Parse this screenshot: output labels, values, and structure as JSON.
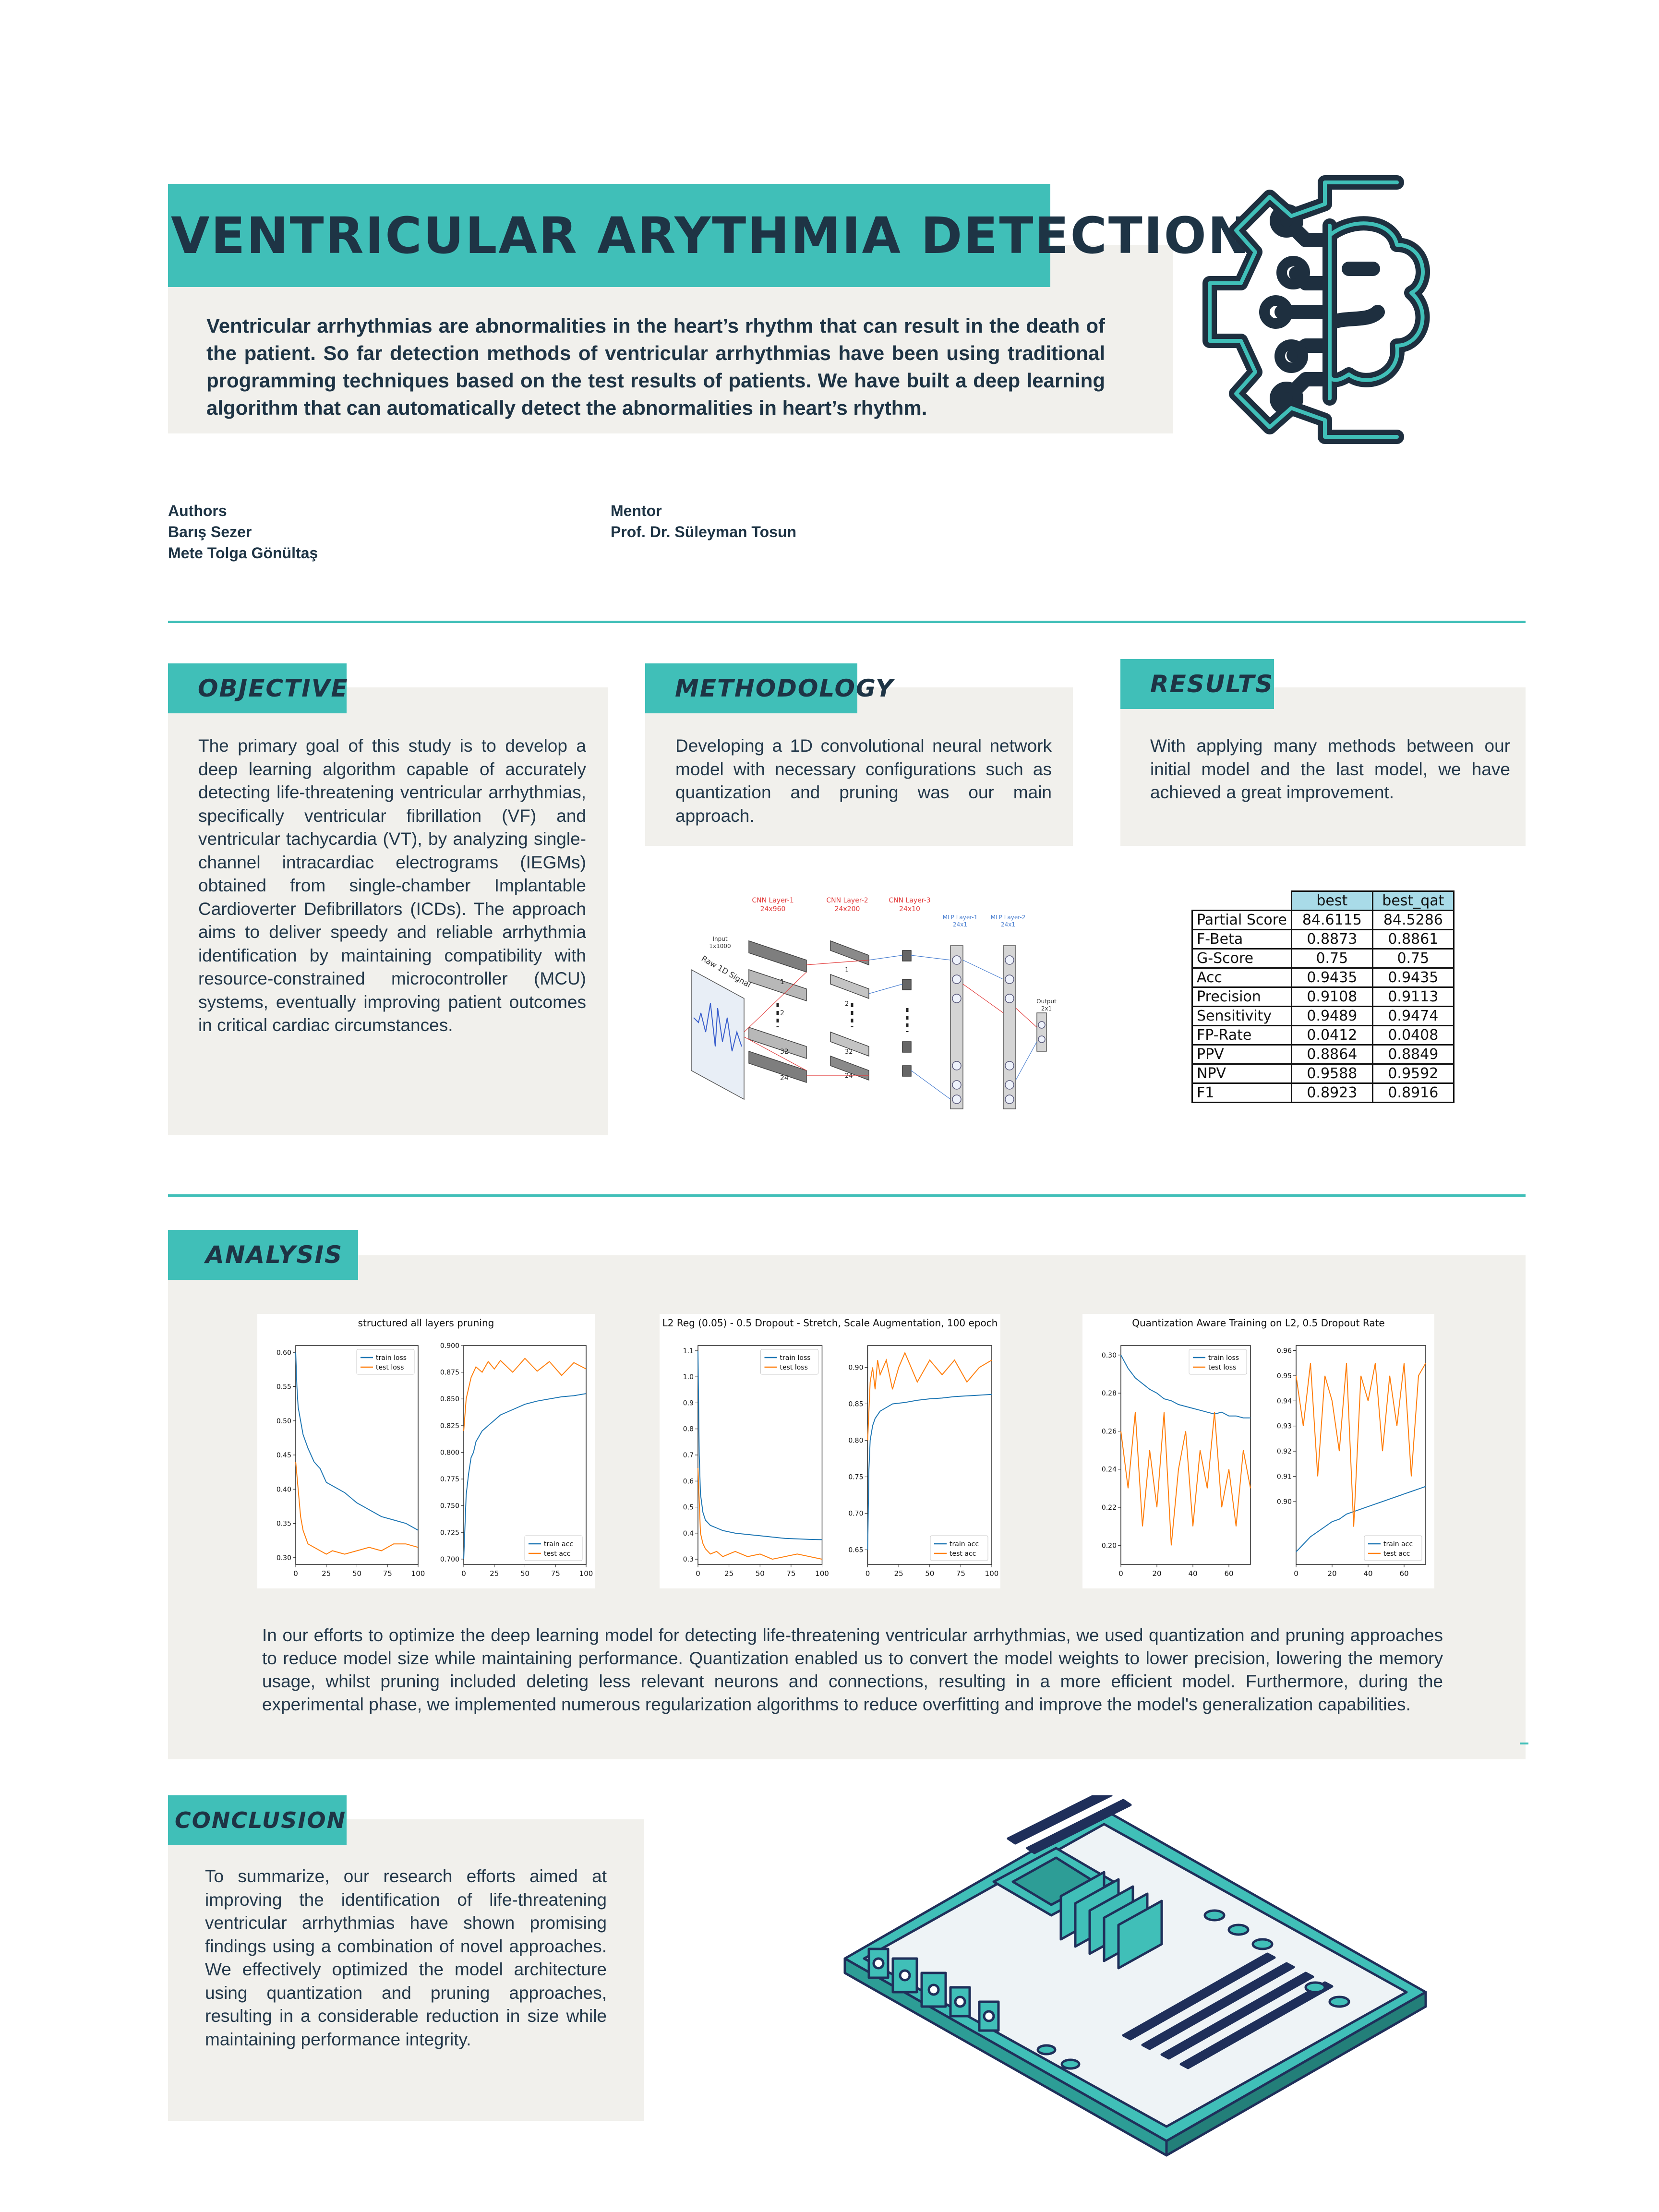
{
  "header": {
    "title": "VENTRICULAR ARYTHMIA DETECTION",
    "intro": "Ventricular arrhythmias are abnormalities in the heart’s rhythm that can result in the death of the patient. So far detection methods of ventricular arrhythmias have been using traditional programming techniques based on the test results of patients. We have built a deep learning algorithm that can automatically detect the abnormalities in heart’s rhythm."
  },
  "people": {
    "authors_label": "Authors",
    "authors": [
      "Barış Sezer",
      "Mete Tolga Gönültaş"
    ],
    "mentor_label": "Mentor",
    "mentor": "Prof. Dr. Süleyman Tosun"
  },
  "objective": {
    "heading": "OBJECTIVE",
    "text": "The primary goal of this study is to develop a deep learning algorithm capable of accurately detecting life-threatening ventricular arrhythmias, specifically ventricular fibrillation (VF) and ventricular tachycardia (VT), by analyzing single-channel intracardiac electrograms (IEGMs) obtained from single-chamber Implantable Cardioverter Defibrillators (ICDs). The approach aims to deliver speedy and reliable arrhythmia identification by maintaining compatibility with resource-constrained microcontroller (MCU) systems, eventually improving patient outcomes in critical cardiac circumstances."
  },
  "methodology": {
    "heading": "METHODOLOGY",
    "text": "Developing a 1D convolutional neural network model with necessary configurations such as quantization and pruning was our main approach.",
    "diagram": {
      "cnn1": "CNN Layer-1",
      "cnn1_dim": "24x960",
      "cnn2": "CNN Layer-2",
      "cnn2_dim": "24x200",
      "cnn3": "CNN Layer-3",
      "cnn3_dim": "24x10",
      "mlp1": "MLP Layer-1",
      "mlp1_dim": "24x1",
      "mlp2": "MLP Layer-2",
      "mlp2_dim": "24x1",
      "input": "Input",
      "input_dim": "1x1000",
      "raw": "Raw 1D Signal",
      "output": "Output",
      "output_dim": "2x1",
      "m1": "1",
      "m2": "2",
      "m32a": "32",
      "m24a": "24",
      "n1": "1",
      "n2": "2",
      "n32": "32",
      "n24": "24"
    }
  },
  "results": {
    "heading": "RESULTS",
    "text": "With applying many methods between our initial model and the last model, we have achieved a great improvement.",
    "columns": [
      "best",
      "best_qat"
    ],
    "rows": [
      {
        "label": "Partial Score",
        "best": "84.6115",
        "best_qat": "84.5286"
      },
      {
        "label": "F-Beta",
        "best": "0.8873",
        "best_qat": "0.8861"
      },
      {
        "label": "G-Score",
        "best": "0.75",
        "best_qat": "0.75"
      },
      {
        "label": "Acc",
        "best": "0.9435",
        "best_qat": "0.9435"
      },
      {
        "label": "Precision",
        "best": "0.9108",
        "best_qat": "0.9113"
      },
      {
        "label": "Sensitivity",
        "best": "0.9489",
        "best_qat": "0.9474"
      },
      {
        "label": "FP-Rate",
        "best": "0.0412",
        "best_qat": "0.0408"
      },
      {
        "label": "PPV",
        "best": "0.8864",
        "best_qat": "0.8849"
      },
      {
        "label": "NPV",
        "best": "0.9588",
        "best_qat": "0.9592"
      },
      {
        "label": "F1",
        "best": "0.8923",
        "best_qat": "0.8916"
      }
    ]
  },
  "analysis": {
    "heading": "ANALYSIS",
    "text": "In our efforts to optimize the deep learning model for detecting life-threatening ventricular arrhythmias, we used quantization and pruning approaches to reduce model size while maintaining performance. Quantization enabled us to convert the model weights to lower precision, lowering the memory usage, whilst pruning included deleting less relevant neurons and connections, resulting in a more efficient model. Furthermore, during the experimental phase, we implemented numerous regularization algorithms to reduce overfitting and improve the model's generalization capabilities."
  },
  "conclusion": {
    "heading": "CONCLUSION",
    "text": "To summarize, our research efforts aimed at improving the identification of life-threatening ventricular arrhythmias have shown promising findings using a combination of novel approaches. We effectively optimized the model architecture using quantization and pruning approaches, resulting in a considerable reduction in size while maintaining performance integrity."
  },
  "colors": {
    "teal": "#40bfb8",
    "panel": "#f1f0ec",
    "navy": "#1e3445",
    "train": "#1f77b4",
    "test": "#ff7f0e"
  },
  "icons": [
    "brain-gear-icon",
    "motherboard-illustration"
  ],
  "chart_data": [
    {
      "type": "line",
      "title": "structured all layers pruning",
      "panels": [
        {
          "xlim": [
            0,
            100
          ],
          "ylim": [
            0.29,
            0.61
          ],
          "xticks": [
            "0",
            "25",
            "50",
            "75",
            "100"
          ],
          "yticks": [
            "0.30",
            "0.35",
            "0.40",
            "0.45",
            "0.50",
            "0.55",
            "0.60"
          ],
          "legend": "top-right",
          "series": [
            {
              "name": "train loss",
              "x": [
                0,
                1,
                2,
                4,
                6,
                10,
                15,
                20,
                25,
                30,
                40,
                50,
                60,
                70,
                80,
                90,
                100
              ],
              "y": [
                0.6,
                0.55,
                0.52,
                0.5,
                0.48,
                0.46,
                0.44,
                0.43,
                0.41,
                0.405,
                0.395,
                0.38,
                0.37,
                0.36,
                0.355,
                0.35,
                0.34
              ]
            },
            {
              "name": "test loss",
              "x": [
                0,
                2,
                4,
                6,
                8,
                10,
                15,
                20,
                25,
                30,
                40,
                50,
                60,
                70,
                80,
                90,
                100
              ],
              "y": [
                0.44,
                0.4,
                0.36,
                0.34,
                0.33,
                0.32,
                0.315,
                0.31,
                0.305,
                0.31,
                0.305,
                0.31,
                0.315,
                0.31,
                0.32,
                0.32,
                0.315
              ]
            }
          ]
        },
        {
          "xlim": [
            0,
            100
          ],
          "ylim": [
            0.695,
            0.9
          ],
          "xticks": [
            "0",
            "25",
            "50",
            "75",
            "100"
          ],
          "yticks": [
            "0.700",
            "0.725",
            "0.750",
            "0.775",
            "0.800",
            "0.825",
            "0.850",
            "0.875",
            "0.900"
          ],
          "legend": "bottom-right",
          "series": [
            {
              "name": "train acc",
              "x": [
                0,
                2,
                4,
                6,
                8,
                10,
                15,
                20,
                25,
                30,
                40,
                50,
                60,
                70,
                80,
                90,
                100
              ],
              "y": [
                0.7,
                0.76,
                0.78,
                0.795,
                0.8,
                0.81,
                0.82,
                0.825,
                0.83,
                0.835,
                0.84,
                0.845,
                0.848,
                0.85,
                0.852,
                0.853,
                0.855
              ]
            },
            {
              "name": "test acc",
              "x": [
                0,
                2,
                4,
                6,
                8,
                10,
                15,
                20,
                25,
                30,
                40,
                50,
                60,
                70,
                80,
                90,
                100
              ],
              "y": [
                0.82,
                0.85,
                0.86,
                0.87,
                0.875,
                0.88,
                0.875,
                0.885,
                0.878,
                0.886,
                0.875,
                0.888,
                0.876,
                0.885,
                0.872,
                0.884,
                0.878
              ]
            }
          ]
        }
      ]
    },
    {
      "type": "line",
      "title": "L2 Reg (0.05) - 0.5 Dropout - Stretch, Scale Augmentation, 100 epoch",
      "panels": [
        {
          "xlim": [
            0,
            100
          ],
          "ylim": [
            0.28,
            1.12
          ],
          "xticks": [
            "0",
            "25",
            "50",
            "75",
            "100"
          ],
          "yticks": [
            "0.3",
            "0.4",
            "0.5",
            "0.6",
            "0.7",
            "0.8",
            "0.9",
            "1.0",
            "1.1"
          ],
          "legend": "top-right",
          "series": [
            {
              "name": "train loss",
              "x": [
                0,
                1,
                2,
                4,
                6,
                10,
                15,
                20,
                30,
                40,
                50,
                60,
                70,
                80,
                90,
                100
              ],
              "y": [
                1.1,
                0.7,
                0.55,
                0.48,
                0.45,
                0.43,
                0.42,
                0.41,
                0.4,
                0.395,
                0.39,
                0.385,
                0.38,
                0.378,
                0.376,
                0.375
              ]
            },
            {
              "name": "test loss",
              "x": [
                0,
                2,
                4,
                6,
                8,
                10,
                15,
                20,
                25,
                30,
                40,
                50,
                60,
                70,
                80,
                90,
                100
              ],
              "y": [
                0.65,
                0.4,
                0.36,
                0.34,
                0.33,
                0.32,
                0.33,
                0.31,
                0.32,
                0.33,
                0.31,
                0.32,
                0.3,
                0.31,
                0.32,
                0.31,
                0.3
              ]
            }
          ]
        },
        {
          "xlim": [
            0,
            100
          ],
          "ylim": [
            0.63,
            0.93
          ],
          "xticks": [
            "0",
            "25",
            "50",
            "75",
            "100"
          ],
          "yticks": [
            "0.65",
            "0.70",
            "0.75",
            "0.80",
            "0.85",
            "0.90"
          ],
          "legend": "bottom-right",
          "series": [
            {
              "name": "train acc",
              "x": [
                0,
                1,
                2,
                4,
                6,
                10,
                15,
                20,
                30,
                40,
                50,
                60,
                70,
                80,
                90,
                100
              ],
              "y": [
                0.65,
                0.76,
                0.8,
                0.82,
                0.83,
                0.84,
                0.845,
                0.85,
                0.852,
                0.855,
                0.857,
                0.858,
                0.86,
                0.861,
                0.862,
                0.863
              ]
            },
            {
              "name": "test acc",
              "x": [
                0,
                2,
                4,
                6,
                8,
                10,
                15,
                20,
                25,
                30,
                40,
                50,
                60,
                70,
                80,
                90,
                100
              ],
              "y": [
                0.8,
                0.88,
                0.9,
                0.87,
                0.91,
                0.89,
                0.91,
                0.87,
                0.9,
                0.92,
                0.88,
                0.91,
                0.89,
                0.91,
                0.88,
                0.9,
                0.91
              ]
            }
          ]
        }
      ]
    },
    {
      "type": "line",
      "title": "Quantization Aware Training on L2, 0.5 Dropout Rate",
      "panels": [
        {
          "xlim": [
            0,
            72
          ],
          "ylim": [
            0.19,
            0.305
          ],
          "xticks": [
            "0",
            "20",
            "40",
            "60"
          ],
          "yticks": [
            "0.20",
            "0.22",
            "0.24",
            "0.26",
            "0.28",
            "0.30"
          ],
          "legend": "top-right",
          "series": [
            {
              "name": "train loss",
              "x": [
                0,
                4,
                8,
                12,
                16,
                20,
                24,
                28,
                32,
                36,
                40,
                44,
                48,
                52,
                56,
                60,
                64,
                68,
                72
              ],
              "y": [
                0.3,
                0.293,
                0.288,
                0.285,
                0.282,
                0.28,
                0.277,
                0.276,
                0.274,
                0.273,
                0.272,
                0.271,
                0.27,
                0.269,
                0.27,
                0.268,
                0.268,
                0.267,
                0.267
              ]
            },
            {
              "name": "test loss",
              "x": [
                0,
                4,
                8,
                12,
                16,
                20,
                24,
                28,
                32,
                36,
                40,
                44,
                48,
                52,
                56,
                60,
                64,
                68,
                72
              ],
              "y": [
                0.26,
                0.23,
                0.27,
                0.21,
                0.25,
                0.22,
                0.27,
                0.2,
                0.24,
                0.26,
                0.21,
                0.25,
                0.23,
                0.27,
                0.22,
                0.24,
                0.21,
                0.25,
                0.23
              ]
            }
          ]
        },
        {
          "xlim": [
            0,
            72
          ],
          "ylim": [
            0.875,
            0.962
          ],
          "xticks": [
            "0",
            "20",
            "40",
            "60"
          ],
          "yticks": [
            "0.90",
            "0.91",
            "0.92",
            "0.93",
            "0.94",
            "0.95",
            "0.96"
          ],
          "legend": "bottom-right",
          "series": [
            {
              "name": "train acc",
              "x": [
                0,
                4,
                8,
                12,
                16,
                20,
                24,
                28,
                32,
                36,
                40,
                44,
                48,
                52,
                56,
                60,
                64,
                68,
                72
              ],
              "y": [
                0.88,
                0.883,
                0.886,
                0.888,
                0.89,
                0.892,
                0.893,
                0.895,
                0.896,
                0.897,
                0.898,
                0.899,
                0.9,
                0.901,
                0.902,
                0.903,
                0.904,
                0.905,
                0.906
              ]
            },
            {
              "name": "test acc",
              "x": [
                0,
                4,
                8,
                12,
                16,
                20,
                24,
                28,
                32,
                36,
                40,
                44,
                48,
                52,
                56,
                60,
                64,
                68,
                72
              ],
              "y": [
                0.95,
                0.93,
                0.955,
                0.91,
                0.95,
                0.94,
                0.92,
                0.955,
                0.89,
                0.95,
                0.94,
                0.955,
                0.92,
                0.95,
                0.93,
                0.955,
                0.91,
                0.95,
                0.955
              ]
            }
          ]
        }
      ]
    }
  ]
}
